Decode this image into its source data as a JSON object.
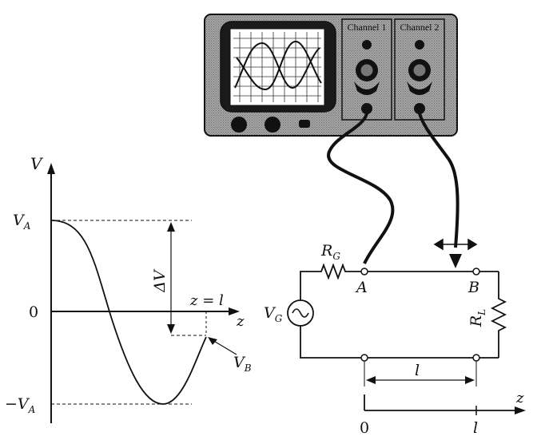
{
  "oscilloscope": {
    "channel1_label": "Channel 1",
    "channel2_label": "Channel 2"
  },
  "graph": {
    "y_axis_label": "V",
    "x_axis_label": "z",
    "va_label": "V",
    "va_sub": "A",
    "neg_va_label": "−V",
    "neg_va_sub": "A",
    "zero_label": "0",
    "delta_v_label": "ΔV",
    "z_eq_l_label": "z = l",
    "vb_label": "V",
    "vb_sub": "B"
  },
  "circuit": {
    "rg_label": "R",
    "rg_sub": "G",
    "vg_label": "V",
    "vg_sub": "G",
    "rl_label": "R",
    "rl_sub": "L",
    "node_a_label": "A",
    "node_b_label": "B",
    "length_label": "l"
  },
  "axis": {
    "z_label": "z",
    "zero_label": "0",
    "l_label": "l"
  },
  "colors": {
    "ink": "#111111",
    "panel": "#8e8e8e",
    "screen": "#ffffff"
  }
}
